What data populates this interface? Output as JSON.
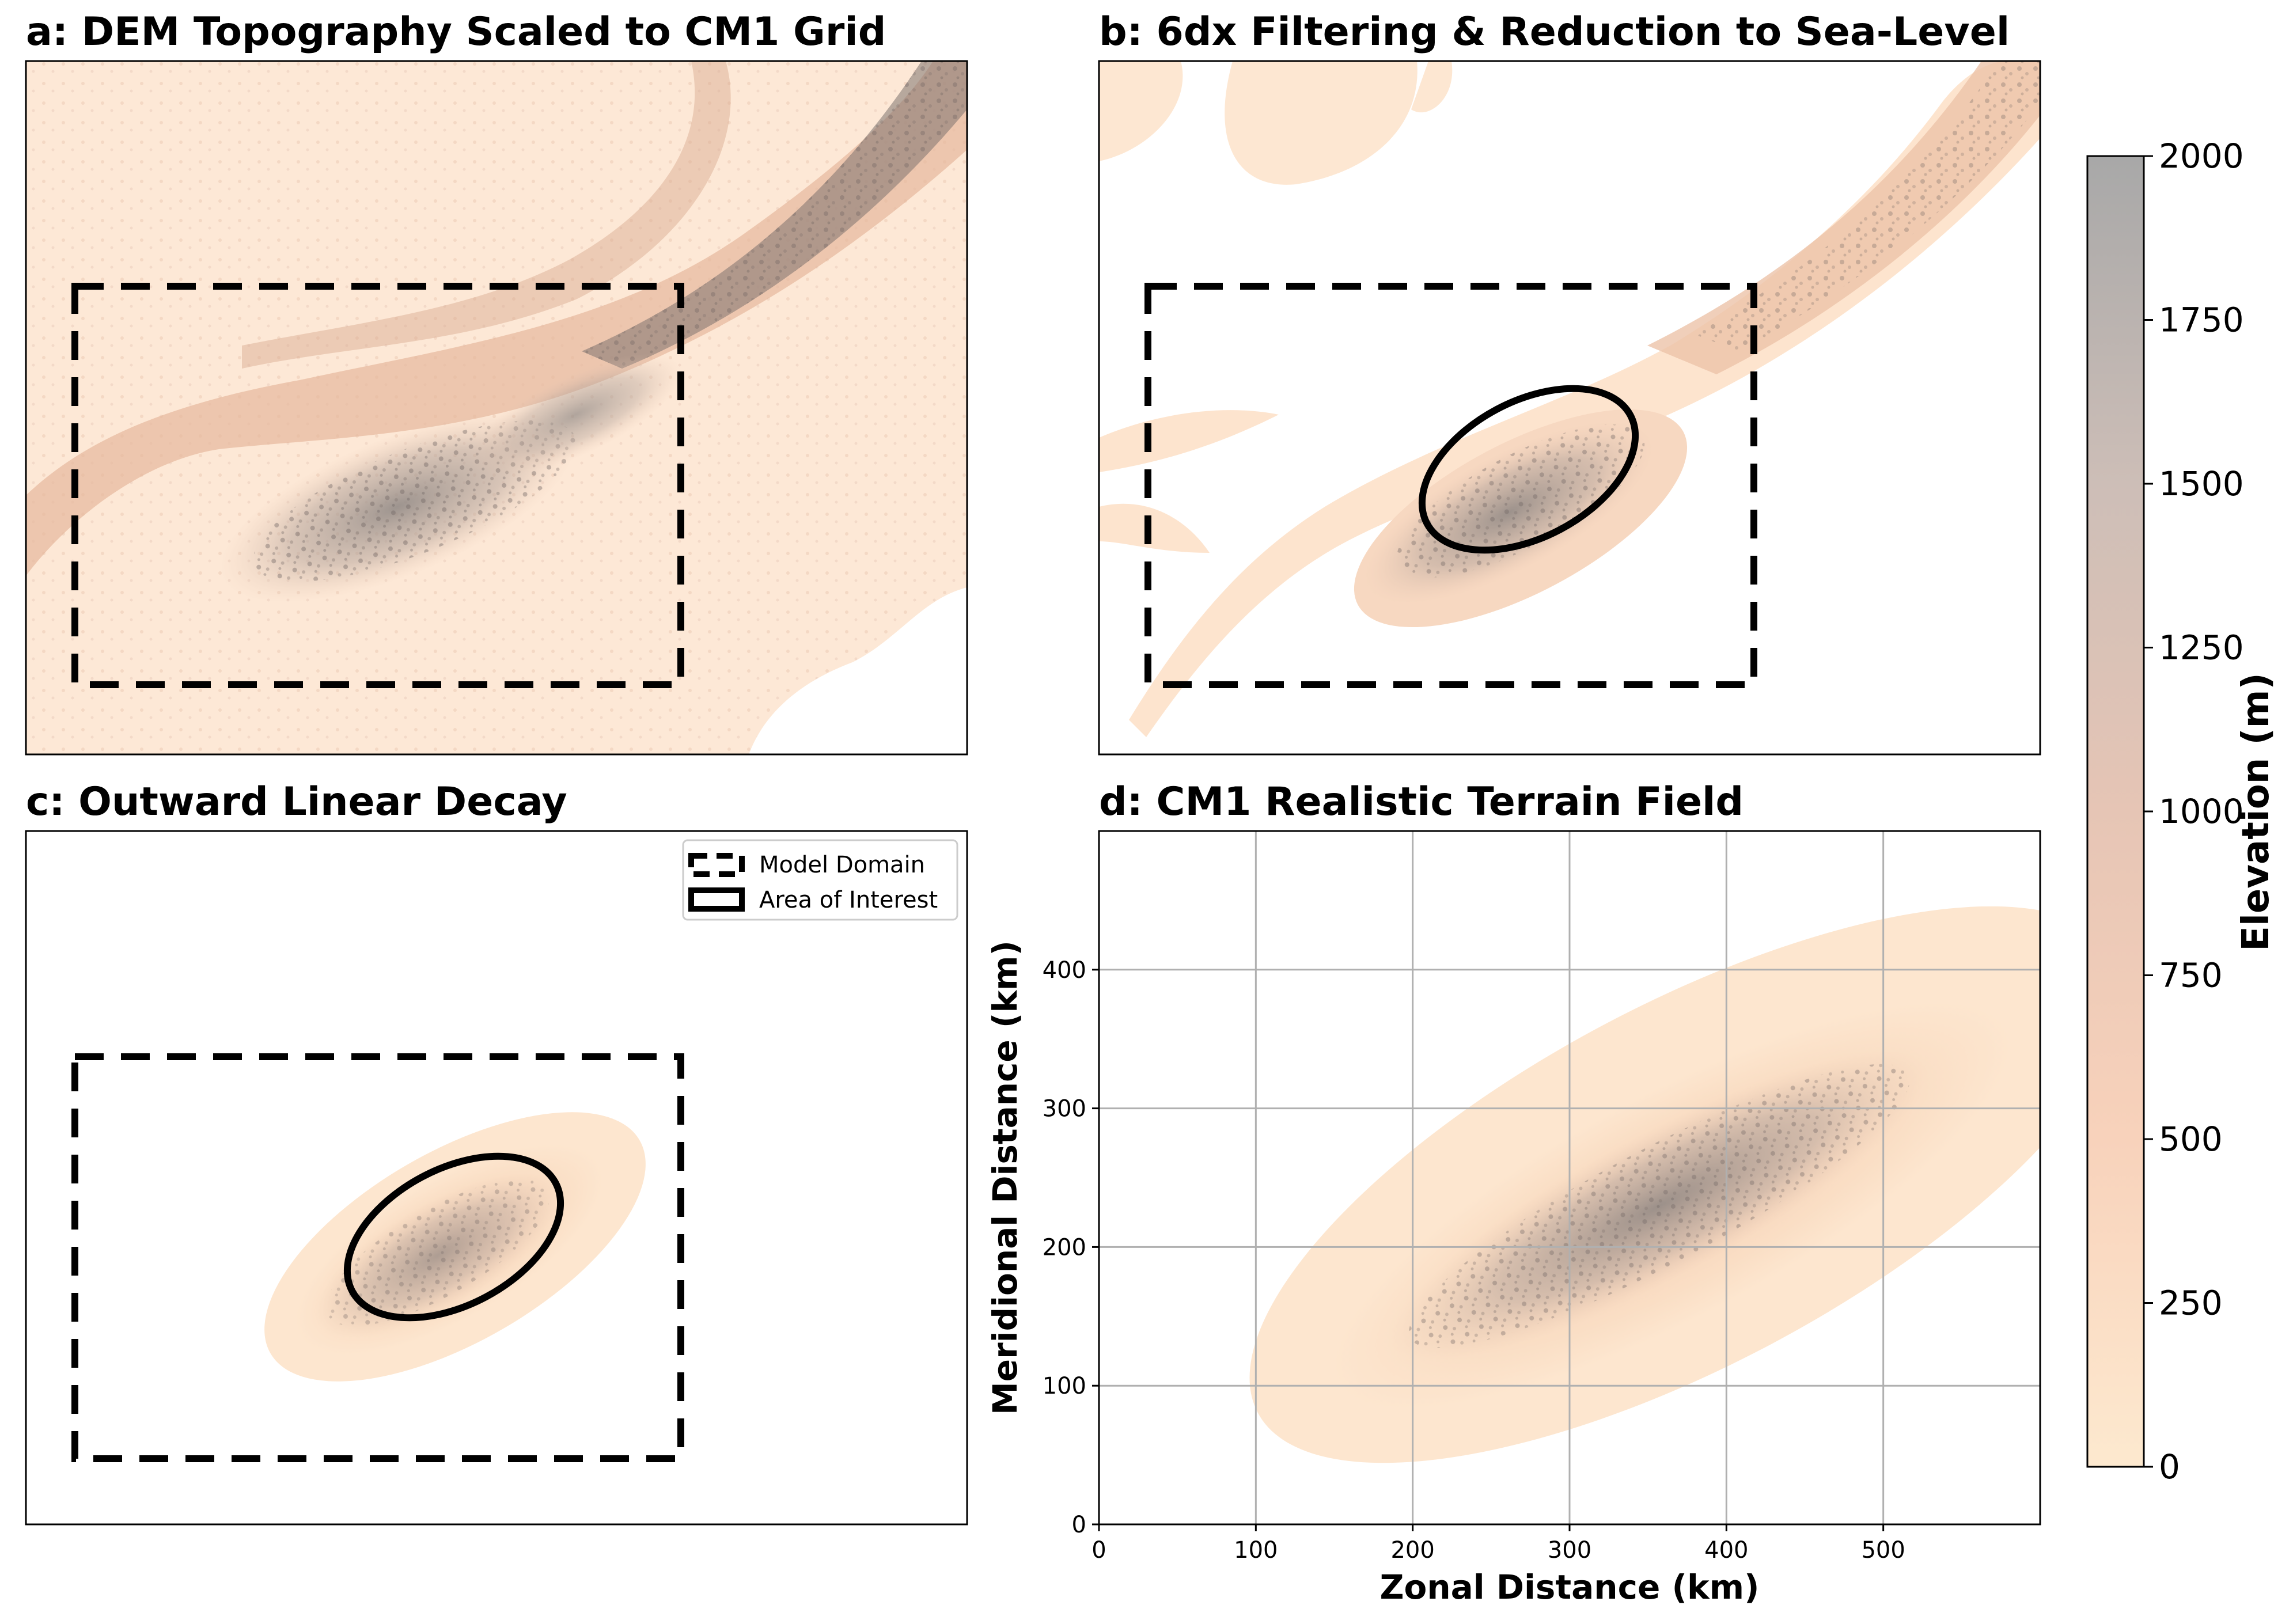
{
  "panels": {
    "a": {
      "title": "a: DEM Topography Scaled to CM1 Grid"
    },
    "b": {
      "title": "b: 6dx Filtering & Reduction to Sea-Level"
    },
    "c": {
      "title": "c: Outward Linear Decay"
    },
    "d": {
      "title": "d: CM1 Realistic Terrain Field"
    }
  },
  "legend": {
    "items": [
      {
        "label": "Model Domain",
        "style": "dashed-box"
      },
      {
        "label": "Area of Interest",
        "style": "solid-box"
      }
    ]
  },
  "colorbar": {
    "label": "Elevation (m)",
    "ticks": [
      "0",
      "250",
      "500",
      "750",
      "1000",
      "1250",
      "1500",
      "1750",
      "2000"
    ],
    "range": [
      0,
      2000
    ],
    "colors": [
      "#fde9cf",
      "#f8d2bb",
      "#e6c5b5",
      "#cdbeb7",
      "#a8a8a8"
    ]
  },
  "chart_data": {
    "type": "heatmap",
    "title": "d: CM1 Realistic Terrain Field",
    "xlabel": "Zonal Distance (km)",
    "ylabel": "Meridional Distance (km)",
    "xlim": [
      0,
      600
    ],
    "ylim": [
      0,
      500
    ],
    "xticks": [
      "0",
      "100",
      "200",
      "300",
      "400",
      "500"
    ],
    "yticks": [
      "0",
      "100",
      "200",
      "300",
      "400"
    ],
    "grid": true,
    "terrain_envelope": {
      "center_km": [
        375,
        245
      ],
      "semi_major_km": 310,
      "semi_minor_km": 130,
      "angle_deg": 28
    },
    "peak_elevation_m": 1500
  }
}
